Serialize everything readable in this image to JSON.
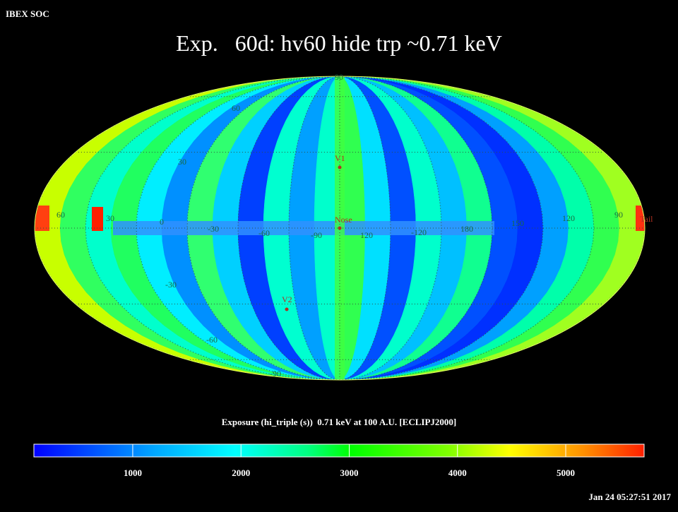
{
  "header": {
    "label": "IBEX SOC",
    "timestamp": "Jan 24 05:27:51 2017"
  },
  "title": "Exp.   60d: hv60 hide trp ~0.71 keV",
  "map": {
    "longitude_labels": [
      "60",
      "30",
      "0",
      "-30",
      "-60",
      "-90",
      "120",
      "-120",
      "180",
      "150",
      "120",
      "90"
    ],
    "latitude_labels": [
      "90",
      "60",
      "30",
      "-30",
      "-60",
      "-90"
    ],
    "markers": [
      "V1",
      "Nose",
      "V2",
      "Tail"
    ]
  },
  "colorbar": {
    "title": "Exposure (hi_triple (s))  0.71 keV at 100 A.U. [ECLIPJ2000]",
    "lim": [
      87,
      5724
    ],
    "ticks": [
      1000,
      2000,
      3000,
      4000,
      5000
    ]
  }
}
